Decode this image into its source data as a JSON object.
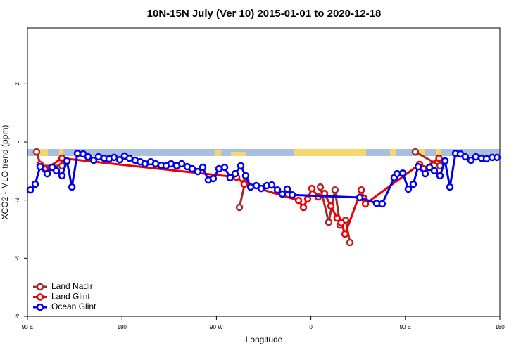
{
  "chart_data": {
    "type": "line",
    "title": "10N-15N July (Ver 10)   2015-01-01 to 2020-12-18",
    "xlabel": "Longitude",
    "ylabel": "XCO2 - MLO trend (ppm)",
    "xlim": [
      90,
      540
    ],
    "xticks": [
      {
        "value": 90,
        "label": "90 E"
      },
      180,
      {
        "value": 270,
        "label": "90 W"
      },
      {
        "value": 360,
        "label": "0"
      },
      {
        "value": 450,
        "label": "90 E"
      },
      {
        "value": 540,
        "label": "180"
      }
    ],
    "ylim": [
      -6,
      3.92
    ],
    "yticks": [
      -6,
      -4,
      -2,
      0,
      2
    ],
    "legend": "bottom-left",
    "series": [
      {
        "name": "Land Nadir",
        "color": "#a52a2a",
        "x": [
          98.7,
          102.7,
          122.9,
          273,
          291.9,
          297.2,
          352.2,
          369,
          377,
          383,
          387.8,
          393.1,
          397.2,
          438,
          459.5,
          483
        ],
        "values": [
          -0.34,
          -0.82,
          -0.82,
          null,
          -2.25,
          -1.4,
          null,
          -1.55,
          -2.76,
          -1.65,
          -2.86,
          -2.69,
          -3.46,
          null,
          -0.34,
          -0.82
        ]
      },
      {
        "name": "Land Glint",
        "color": "#ee0000",
        "x": [
          102,
          106.8,
          122.9,
          289.2,
          296.5,
          348.2,
          352.9,
          356.9,
          361,
          367,
          373,
          379,
          385,
          389,
          392.5,
          408,
          410.6,
          412,
          463.5,
          467,
          482
        ],
        "values": [
          -0.77,
          -0.94,
          -0.56,
          -1.21,
          -1.45,
          -2.01,
          -2.25,
          -1.96,
          -1.6,
          -1.89,
          -1.77,
          -2.2,
          -2.62,
          -2.78,
          -3.17,
          -1.65,
          -1.94,
          -2.13,
          -0.77,
          -0.92,
          -0.56
        ]
      },
      {
        "name": "Ocean Glint",
        "color": "#0000ee",
        "x": [
          92.7,
          97.4,
          102,
          108.8,
          113.5,
          117.5,
          122.9,
          127.6,
          132.3,
          137.6,
          143,
          147.7,
          153,
          157.7,
          163.1,
          167.8,
          172.5,
          177.9,
          182.5,
          187.2,
          192.6,
          197.3,
          202,
          207.4,
          212.1,
          217.4,
          222.1,
          226.8,
          232.2,
          236.9,
          242.2,
          246.9,
          252.3,
          257,
          262.3,
          267,
          272.4,
          277.8,
          283.1,
          287.8,
          293.2,
          297.9,
          302.6,
          308,
          312.7,
          318,
          322.7,
          328.1,
          332.8,
          337.5,
          342.2,
          406.6,
          422.6,
          427.9,
          439.4,
          442.1,
          447.5,
          452.8,
          457.5,
          462.2,
          468.9,
          473,
          477.6,
          483,
          487.7,
          492.4,
          497.8,
          502.4,
          507.1,
          512.5,
          517.2,
          522.6,
          527.3,
          532.6,
          537.3
        ],
        "values": [
          -1.65,
          -1.45,
          -0.85,
          -1.09,
          -0.87,
          -0.99,
          -1.16,
          -0.65,
          -1.55,
          -0.39,
          -0.41,
          -0.51,
          -0.63,
          -0.51,
          -0.56,
          -0.58,
          -0.53,
          -0.61,
          -0.48,
          -0.56,
          -0.63,
          -0.68,
          -0.75,
          -0.68,
          -0.75,
          -0.8,
          -0.82,
          -0.75,
          -0.82,
          -0.75,
          -0.85,
          -0.92,
          -1.02,
          -0.87,
          -1.31,
          -1.26,
          -0.92,
          -0.87,
          -1.23,
          -1.09,
          -0.82,
          -1.16,
          -1.55,
          -1.5,
          -1.6,
          -1.5,
          -1.48,
          -1.65,
          -1.79,
          -1.62,
          -1.82,
          -1.91,
          -2.11,
          -2.13,
          -1.23,
          -1.09,
          -1.07,
          -1.62,
          -1.45,
          -0.85,
          -1.09,
          -0.87,
          -0.99,
          -1.16,
          -0.65,
          -1.55,
          -0.39,
          -0.41,
          -0.51,
          -0.63,
          -0.51,
          -0.56,
          -0.58,
          -0.53,
          -0.53
        ]
      }
    ]
  }
}
